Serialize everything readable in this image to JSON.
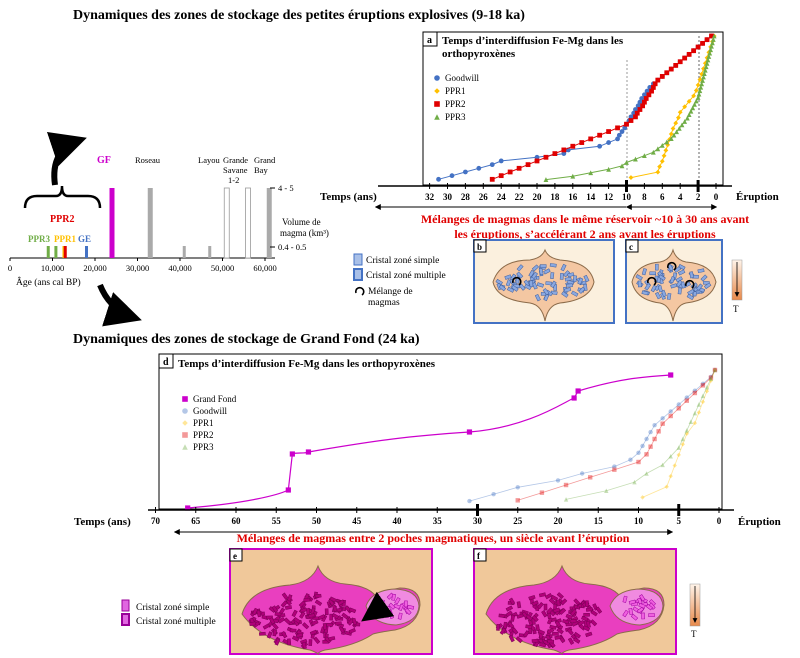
{
  "title_top": "Dynamiques des zones de stockage des petites éruptions explosives (9-18 ka)",
  "title_bottom": "Dynamiques des zones de stockage de Grand Fond (24 ka)",
  "colors": {
    "goodwill": "#4472c4",
    "ppr1": "#ffc000",
    "ppr2": "#e00000",
    "ppr3": "#70ad47",
    "grandfond": "#cc00cc",
    "accent_red": "#e00000",
    "panel_border_blue": "#4472c4",
    "panel_border_magenta": "#cc00cc"
  },
  "timeline": {
    "ppr2_label": "PPR2",
    "ppr3_label": "PPR3",
    "ppr1_label": "PPR1",
    "ge_label": "GE",
    "gf_label": "GF",
    "roseau_label": "Roseau",
    "layou_label": "Layou",
    "grande_savane_label": "Grande Savane 1-2",
    "grande_savane_line1": "Grande",
    "grande_savane_line2": "Savane",
    "grande_savane_line3": "1-2",
    "grand_bay_line1": "Grand",
    "grand_bay_line2": "Bay",
    "volume_line1": "Volume de",
    "volume_line2": "magma (km³)",
    "vol_high": "4 - 5",
    "vol_low": "0.4 - 0.5",
    "axis_label": "Âge (ans cal BP)",
    "ticks": [
      "0",
      "10,000",
      "20,000",
      "30,000",
      "40,000",
      "50,000",
      "60,000"
    ],
    "bars": [
      {
        "age": 9000,
        "volume": "low",
        "color": "#70ad47"
      },
      {
        "age": 10800,
        "volume": "low",
        "color": "#70ad47"
      },
      {
        "age": 12700,
        "volume": "low",
        "color": "#ffc000"
      },
      {
        "age": 13000,
        "volume": "low",
        "color": "#e00000"
      },
      {
        "age": 18000,
        "volume": "low",
        "color": "#4472c4"
      },
      {
        "age": 24000,
        "volume": "high",
        "color": "#cc00cc"
      },
      {
        "age": 33000,
        "volume": "high",
        "color": "#aaaaaa"
      },
      {
        "age": 41000,
        "volume": "low",
        "color": "#aaaaaa"
      },
      {
        "age": 47000,
        "volume": "low",
        "color": "#aaaaaa"
      },
      {
        "age": 51000,
        "volume": "high",
        "color": "#ffffff"
      },
      {
        "age": 56000,
        "volume": "high",
        "color": "#ffffff"
      },
      {
        "age": 61000,
        "volume": "high",
        "color": "#aaaaaa"
      }
    ]
  },
  "panel_a": {
    "letter": "a",
    "title_line1": "Temps d’interdiffusion Fe-Mg dans les",
    "title_line2": "orthopyroxènes",
    "legend": [
      "Goodwill",
      "PPR1",
      "PPR2",
      "PPR3"
    ],
    "axis_label": "Temps (ans)",
    "eruption_label": "Éruption",
    "ticks": [
      "32",
      "30",
      "28",
      "26",
      "24",
      "22",
      "20",
      "18",
      "16",
      "14",
      "12",
      "10",
      "8",
      "6",
      "4",
      "2",
      "0"
    ],
    "caption_line1": "Mélanges de magmas dans le même réservoir ~10 à 30 ans avant",
    "caption_line2": "les éruptions,  s’accélérant 2 ans avant les éruptions"
  },
  "legend_bc": {
    "simple": "Cristal zoné simple",
    "multiple": "Cristal zoné multiple",
    "mix_line1": "Mélange de",
    "mix_line2": "magmas"
  },
  "panel_b": {
    "letter": "b"
  },
  "panel_c": {
    "letter": "c"
  },
  "temp_label": "T",
  "panel_d": {
    "letter": "d",
    "title": "Temps d’interdiffusion Fe-Mg dans les orthopyroxènes",
    "legend": [
      "Grand Fond",
      "Goodwill",
      "PPR1",
      "PPR2",
      "PPR3"
    ],
    "axis_label": "Temps (ans)",
    "eruption_label": "Éruption",
    "ticks": [
      "70",
      "65",
      "60",
      "55",
      "50",
      "45",
      "40",
      "35",
      "30",
      "25",
      "20",
      "15",
      "10",
      "5",
      "0"
    ],
    "caption": "Mélanges de magmas entre 2 poches magmatiques, un siècle avant l’éruption"
  },
  "legend_ef": {
    "simple": "Cristal zoné simple",
    "multiple": "Cristal zoné multiple"
  },
  "panel_e": {
    "letter": "e"
  },
  "panel_f": {
    "letter": "f"
  },
  "chart_data": [
    {
      "type": "scatter",
      "title": "Temps d’interdiffusion Fe-Mg dans les orthopyroxènes",
      "xlabel": "Temps (ans)",
      "xlim": [
        33,
        0
      ],
      "series": [
        {
          "name": "Goodwill",
          "x": [
            31,
            29.5,
            28,
            26.5,
            25,
            24,
            20,
            17,
            16.5,
            13,
            12,
            11,
            10.8,
            10.5,
            10.2,
            10,
            9.7,
            9.5,
            9.2,
            9,
            8.7,
            8.5,
            8.3,
            8,
            7.7,
            7.4,
            7,
            6.5,
            6,
            5.5,
            5,
            4.5,
            4,
            3.5,
            3,
            2.5,
            2,
            1.5,
            1,
            0.5
          ],
          "y": [
            1,
            2,
            3,
            4,
            5,
            6,
            7,
            8,
            9,
            10,
            11,
            12,
            13,
            14,
            15,
            16,
            17,
            18,
            19,
            20,
            21,
            22,
            23,
            24,
            25,
            26,
            27,
            28,
            29,
            30,
            31,
            32,
            33,
            34,
            35,
            36,
            37,
            38,
            39,
            40
          ]
        },
        {
          "name": "PPR1",
          "x": [
            9.5,
            6.5,
            6.3,
            6,
            5.8,
            5.6,
            5.4,
            5.2,
            5,
            4.8,
            4.5,
            4.2,
            4,
            3.5,
            3,
            2.5,
            2.2,
            2,
            1.8,
            1.6,
            1.4,
            1.2,
            1,
            0.8,
            0.6,
            0.4,
            0.2
          ],
          "y": [
            1,
            2,
            3,
            4,
            5,
            6,
            7,
            8,
            9,
            10,
            11,
            12,
            13,
            14,
            15,
            16,
            17,
            18,
            19,
            20,
            21,
            22,
            23,
            24,
            25,
            26,
            27
          ]
        },
        {
          "name": "PPR2",
          "x": [
            25,
            24,
            23,
            22,
            21,
            20,
            19,
            18,
            17,
            16,
            15,
            14,
            13,
            12,
            11,
            10,
            9.5,
            9,
            8.8,
            8.5,
            8.2,
            8,
            7.8,
            7.5,
            7.2,
            7,
            6.8,
            6.5,
            6,
            5.5,
            5,
            4.5,
            4,
            3.5,
            3,
            2.5,
            2,
            1.5,
            1,
            0.5
          ],
          "y": [
            1,
            2,
            3,
            4,
            5,
            6,
            7,
            8,
            9,
            10,
            11,
            12,
            13,
            14,
            15,
            16,
            17,
            18,
            19,
            20,
            21,
            22,
            23,
            24,
            25,
            26,
            27,
            28,
            29,
            30,
            31,
            32,
            33,
            34,
            35,
            36,
            37,
            38,
            39,
            40
          ]
        },
        {
          "name": "PPR3",
          "x": [
            19,
            16,
            14,
            12,
            10.5,
            10,
            9,
            8,
            7,
            6.5,
            6,
            5.5,
            5,
            4.7,
            4.4,
            4.1,
            3.8,
            3.5,
            3.2,
            3,
            2.8,
            2.6,
            2.4,
            2.2,
            2,
            1.9,
            1.8,
            1.7,
            1.6,
            1.5,
            1.4,
            1.3,
            1.2,
            1.1,
            1,
            0.9,
            0.8,
            0.7,
            0.6,
            0.5,
            0.4,
            0.3,
            0.2
          ],
          "y": [
            1,
            2,
            3,
            4,
            5,
            6,
            7,
            8,
            9,
            10,
            11,
            12,
            13,
            14,
            15,
            16,
            17,
            18,
            19,
            20,
            21,
            22,
            23,
            24,
            25,
            26,
            27,
            28,
            29,
            30,
            31,
            32,
            33,
            34,
            35,
            36,
            37,
            38,
            39,
            40,
            41,
            42,
            43
          ]
        }
      ]
    },
    {
      "type": "scatter",
      "title": "Temps d’interdiffusion Fe-Mg dans les orthopyroxènes",
      "xlabel": "Temps (ans)",
      "xlim": [
        70,
        0
      ],
      "series": [
        {
          "name": "Grand Fond",
          "x": [
            66,
            53.5,
            53,
            51,
            31,
            18,
            17.5,
            6
          ],
          "y": [
            1,
            2,
            3,
            4,
            5,
            6,
            7,
            8
          ]
        },
        {
          "name": "Goodwill",
          "x": [
            31,
            28,
            25,
            20,
            17,
            13,
            11,
            10,
            9.5,
            9,
            8.5,
            8,
            7,
            6,
            5,
            4,
            3,
            2,
            1,
            0.5
          ],
          "y": [
            1,
            2,
            3,
            4,
            5,
            6,
            7,
            8,
            9,
            10,
            11,
            12,
            13,
            14,
            15,
            16,
            17,
            18,
            19,
            20
          ]
        },
        {
          "name": "PPR1",
          "x": [
            9.5,
            6.5,
            6,
            5.5,
            5,
            4.5,
            4,
            3,
            2.5,
            2,
            1.5,
            1,
            0.5
          ],
          "y": [
            1,
            2,
            3,
            4,
            5,
            6,
            7,
            8,
            9,
            10,
            11,
            12,
            13
          ]
        },
        {
          "name": "PPR2",
          "x": [
            25,
            22,
            19,
            16,
            13,
            10,
            9,
            8.5,
            8,
            7.5,
            7,
            6,
            5,
            4,
            3,
            2,
            1,
            0.5
          ],
          "y": [
            1,
            2,
            3,
            4,
            5,
            6,
            7,
            8,
            9,
            10,
            11,
            12,
            13,
            14,
            15,
            16,
            17,
            18
          ]
        },
        {
          "name": "PPR3",
          "x": [
            19,
            14,
            10.5,
            9,
            7,
            6,
            5,
            4.5,
            4,
            3.5,
            3,
            2.5,
            2,
            1.5,
            1,
            0.5
          ],
          "y": [
            1,
            2,
            3,
            4,
            5,
            6,
            7,
            8,
            9,
            10,
            11,
            12,
            13,
            14,
            15,
            16
          ]
        }
      ]
    }
  ]
}
